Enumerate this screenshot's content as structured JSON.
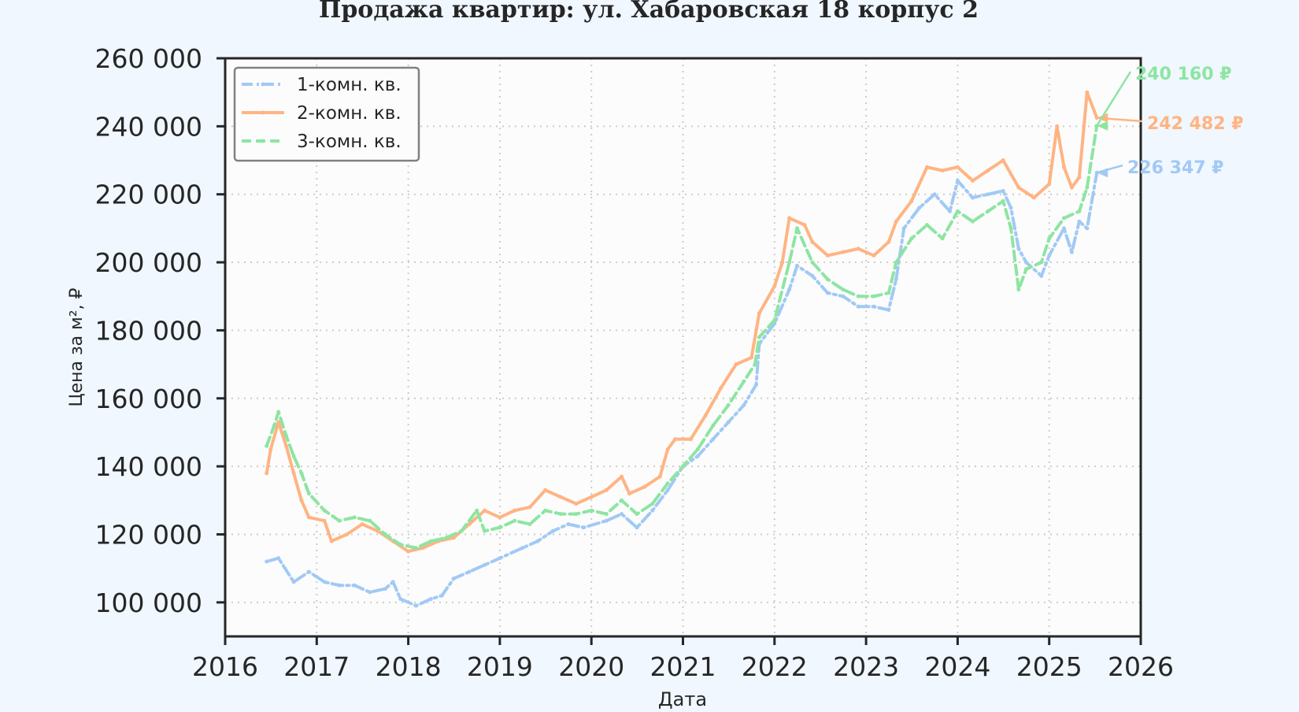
{
  "chart_data": {
    "type": "line",
    "title": "Продажа квартир: ул. Хабаровская 18 корпус 2",
    "xlabel": "Дата",
    "ylabel": "Цена за м², ₽",
    "xlim": [
      "2016-01-01",
      "2026-01-01"
    ],
    "ylim": [
      90000,
      260000
    ],
    "x_ticks": [
      "2016",
      "2017",
      "2018",
      "2019",
      "2020",
      "2021",
      "2022",
      "2023",
      "2024",
      "2025",
      "2026"
    ],
    "y_ticks": [
      100000,
      120000,
      140000,
      160000,
      180000,
      200000,
      220000,
      240000,
      260000
    ],
    "y_tick_labels": [
      "100 000",
      "120 000",
      "140 000",
      "160 000",
      "180 000",
      "200 000",
      "220 000",
      "240 000",
      "260 000"
    ],
    "grid": true,
    "legend_position": "top-left",
    "series": [
      {
        "name": "1-комн. кв.",
        "color": "#a1c9f4",
        "line_style": "dash-dot",
        "end_label": "226 347 ₽",
        "points": [
          [
            "2016-06-15",
            112000
          ],
          [
            "2016-08-01",
            113000
          ],
          [
            "2016-10-01",
            106000
          ],
          [
            "2016-12-01",
            109000
          ],
          [
            "2017-02-01",
            106000
          ],
          [
            "2017-04-01",
            105000
          ],
          [
            "2017-06-01",
            105000
          ],
          [
            "2017-08-01",
            103000
          ],
          [
            "2017-10-01",
            104000
          ],
          [
            "2017-11-01",
            106000
          ],
          [
            "2017-12-01",
            101000
          ],
          [
            "2018-02-01",
            99000
          ],
          [
            "2018-04-01",
            101000
          ],
          [
            "2018-05-15",
            102000
          ],
          [
            "2018-07-01",
            107000
          ],
          [
            "2018-09-01",
            109000
          ],
          [
            "2018-11-01",
            111000
          ],
          [
            "2019-01-01",
            113000
          ],
          [
            "2019-04-01",
            116000
          ],
          [
            "2019-06-01",
            118000
          ],
          [
            "2019-08-01",
            121000
          ],
          [
            "2019-10-01",
            123000
          ],
          [
            "2019-12-01",
            122000
          ],
          [
            "2020-03-01",
            124000
          ],
          [
            "2020-05-01",
            126000
          ],
          [
            "2020-07-01",
            122000
          ],
          [
            "2020-09-01",
            127000
          ],
          [
            "2020-11-01",
            133000
          ],
          [
            "2021-01-01",
            140000
          ],
          [
            "2021-03-01",
            143000
          ],
          [
            "2021-05-01",
            148000
          ],
          [
            "2021-07-01",
            153000
          ],
          [
            "2021-09-01",
            158000
          ],
          [
            "2021-10-20",
            164000
          ],
          [
            "2021-11-01",
            176000
          ],
          [
            "2022-01-01",
            182000
          ],
          [
            "2022-03-01",
            192000
          ],
          [
            "2022-04-01",
            199000
          ],
          [
            "2022-06-01",
            196000
          ],
          [
            "2022-08-01",
            191000
          ],
          [
            "2022-10-01",
            190000
          ],
          [
            "2022-12-01",
            187000
          ],
          [
            "2023-02-01",
            187000
          ],
          [
            "2023-04-01",
            186000
          ],
          [
            "2023-05-01",
            195000
          ],
          [
            "2023-06-01",
            210000
          ],
          [
            "2023-08-01",
            216000
          ],
          [
            "2023-10-01",
            220000
          ],
          [
            "2023-12-01",
            215000
          ],
          [
            "2024-01-01",
            224000
          ],
          [
            "2024-03-01",
            219000
          ],
          [
            "2024-05-01",
            220000
          ],
          [
            "2024-07-01",
            221000
          ],
          [
            "2024-08-01",
            216000
          ],
          [
            "2024-09-01",
            204000
          ],
          [
            "2024-10-01",
            200000
          ],
          [
            "2024-12-01",
            196000
          ],
          [
            "2025-01-01",
            202000
          ],
          [
            "2025-03-01",
            210000
          ],
          [
            "2025-04-01",
            203000
          ],
          [
            "2025-05-01",
            212000
          ],
          [
            "2025-06-01",
            210000
          ],
          [
            "2025-07-10",
            226347
          ]
        ]
      },
      {
        "name": "2-комн. кв.",
        "color": "#ffb482",
        "line_style": "solid",
        "end_label": "242 482 ₽",
        "points": [
          [
            "2016-06-15",
            138000
          ],
          [
            "2016-07-01",
            145000
          ],
          [
            "2016-08-01",
            153000
          ],
          [
            "2016-09-01",
            146000
          ],
          [
            "2016-10-01",
            138000
          ],
          [
            "2016-11-01",
            130000
          ],
          [
            "2016-12-01",
            125000
          ],
          [
            "2017-02-01",
            124000
          ],
          [
            "2017-03-01",
            118000
          ],
          [
            "2017-05-01",
            120000
          ],
          [
            "2017-07-01",
            123000
          ],
          [
            "2017-09-01",
            121000
          ],
          [
            "2017-11-01",
            118000
          ],
          [
            "2018-01-01",
            115000
          ],
          [
            "2018-03-01",
            116000
          ],
          [
            "2018-05-01",
            118000
          ],
          [
            "2018-07-01",
            119000
          ],
          [
            "2018-09-01",
            123000
          ],
          [
            "2018-11-01",
            127000
          ],
          [
            "2019-01-01",
            125000
          ],
          [
            "2019-03-01",
            127000
          ],
          [
            "2019-05-01",
            128000
          ],
          [
            "2019-07-01",
            133000
          ],
          [
            "2019-09-01",
            131000
          ],
          [
            "2019-11-01",
            129000
          ],
          [
            "2020-01-01",
            131000
          ],
          [
            "2020-03-01",
            133000
          ],
          [
            "2020-05-01",
            137000
          ],
          [
            "2020-06-01",
            132000
          ],
          [
            "2020-08-01",
            134000
          ],
          [
            "2020-10-01",
            137000
          ],
          [
            "2020-11-01",
            145000
          ],
          [
            "2020-12-01",
            148000
          ],
          [
            "2021-02-01",
            148000
          ],
          [
            "2021-04-01",
            155000
          ],
          [
            "2021-06-01",
            163000
          ],
          [
            "2021-08-01",
            170000
          ],
          [
            "2021-10-01",
            172000
          ],
          [
            "2021-11-01",
            185000
          ],
          [
            "2022-01-01",
            193000
          ],
          [
            "2022-02-01",
            200000
          ],
          [
            "2022-03-01",
            213000
          ],
          [
            "2022-05-01",
            211000
          ],
          [
            "2022-06-01",
            206000
          ],
          [
            "2022-08-01",
            202000
          ],
          [
            "2022-10-01",
            203000
          ],
          [
            "2022-12-01",
            204000
          ],
          [
            "2023-02-01",
            202000
          ],
          [
            "2023-04-01",
            206000
          ],
          [
            "2023-05-01",
            212000
          ],
          [
            "2023-07-01",
            218000
          ],
          [
            "2023-09-01",
            228000
          ],
          [
            "2023-11-01",
            227000
          ],
          [
            "2024-01-01",
            228000
          ],
          [
            "2024-03-01",
            224000
          ],
          [
            "2024-05-01",
            227000
          ],
          [
            "2024-07-01",
            230000
          ],
          [
            "2024-09-01",
            222000
          ],
          [
            "2024-11-01",
            219000
          ],
          [
            "2025-01-01",
            223000
          ],
          [
            "2025-02-01",
            240000
          ],
          [
            "2025-03-01",
            228000
          ],
          [
            "2025-04-01",
            222000
          ],
          [
            "2025-05-01",
            225000
          ],
          [
            "2025-06-01",
            250000
          ],
          [
            "2025-07-10",
            242482
          ]
        ]
      },
      {
        "name": "3-комн. кв.",
        "color": "#8de5a1",
        "line_style": "dashed",
        "end_label": "240 160 ₽",
        "points": [
          [
            "2016-06-15",
            146000
          ],
          [
            "2016-07-15",
            152000
          ],
          [
            "2016-08-01",
            156000
          ],
          [
            "2016-09-01",
            149000
          ],
          [
            "2016-10-01",
            143000
          ],
          [
            "2016-11-01",
            138000
          ],
          [
            "2016-12-01",
            132000
          ],
          [
            "2017-02-01",
            127000
          ],
          [
            "2017-04-01",
            124000
          ],
          [
            "2017-06-01",
            125000
          ],
          [
            "2017-08-01",
            124000
          ],
          [
            "2017-10-01",
            120000
          ],
          [
            "2017-12-01",
            117000
          ],
          [
            "2018-02-01",
            116000
          ],
          [
            "2018-04-01",
            118000
          ],
          [
            "2018-06-01",
            119000
          ],
          [
            "2018-08-01",
            121000
          ],
          [
            "2018-10-01",
            127000
          ],
          [
            "2018-11-01",
            121000
          ],
          [
            "2019-01-01",
            122000
          ],
          [
            "2019-03-01",
            124000
          ],
          [
            "2019-05-01",
            123000
          ],
          [
            "2019-07-01",
            127000
          ],
          [
            "2019-09-01",
            126000
          ],
          [
            "2019-11-01",
            126000
          ],
          [
            "2020-01-01",
            127000
          ],
          [
            "2020-03-01",
            126000
          ],
          [
            "2020-05-01",
            130000
          ],
          [
            "2020-07-01",
            126000
          ],
          [
            "2020-09-01",
            129000
          ],
          [
            "2020-11-01",
            135000
          ],
          [
            "2021-01-01",
            140000
          ],
          [
            "2021-03-01",
            145000
          ],
          [
            "2021-05-01",
            152000
          ],
          [
            "2021-07-01",
            158000
          ],
          [
            "2021-09-01",
            165000
          ],
          [
            "2021-10-15",
            170000
          ],
          [
            "2021-11-01",
            178000
          ],
          [
            "2022-01-01",
            183000
          ],
          [
            "2022-03-01",
            200000
          ],
          [
            "2022-04-01",
            210000
          ],
          [
            "2022-06-01",
            200000
          ],
          [
            "2022-08-01",
            195000
          ],
          [
            "2022-10-01",
            192000
          ],
          [
            "2022-12-01",
            190000
          ],
          [
            "2023-02-01",
            190000
          ],
          [
            "2023-04-01",
            191000
          ],
          [
            "2023-05-01",
            200000
          ],
          [
            "2023-07-01",
            207000
          ],
          [
            "2023-09-01",
            211000
          ],
          [
            "2023-11-01",
            207000
          ],
          [
            "2024-01-01",
            215000
          ],
          [
            "2024-03-01",
            212000
          ],
          [
            "2024-05-01",
            215000
          ],
          [
            "2024-07-01",
            218000
          ],
          [
            "2024-08-01",
            210000
          ],
          [
            "2024-09-01",
            192000
          ],
          [
            "2024-10-01",
            198000
          ],
          [
            "2024-12-01",
            200000
          ],
          [
            "2025-01-01",
            207000
          ],
          [
            "2025-03-01",
            213000
          ],
          [
            "2025-05-01",
            215000
          ],
          [
            "2025-06-01",
            222000
          ],
          [
            "2025-07-10",
            240160
          ]
        ]
      }
    ]
  }
}
